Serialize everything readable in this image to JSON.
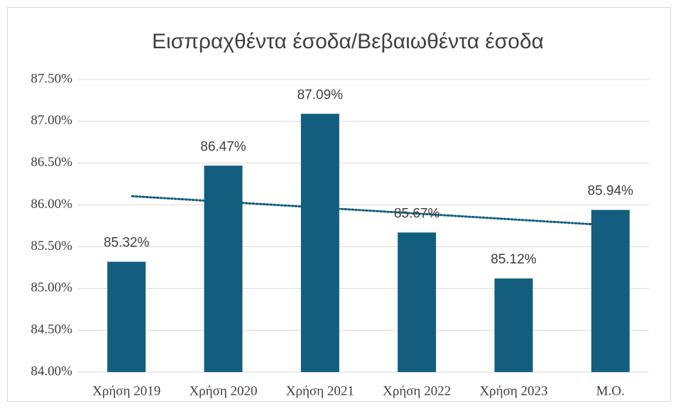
{
  "chart_data": {
    "type": "bar",
    "title": "Εισπραχθέντα έσοδα/Βεβαιωθέντα έσοδα",
    "categories": [
      "Χρήση 2019",
      "Χρήση 2020",
      "Χρήση 2021",
      "Χρήση 2022",
      "Χρήση 2023",
      "Μ.Ο."
    ],
    "values": [
      85.32,
      86.47,
      87.09,
      85.67,
      85.12,
      85.94
    ],
    "value_labels": [
      "85.32%",
      "86.47%",
      "87.09%",
      "85.67%",
      "85.12%",
      "85.94%"
    ],
    "color": "#135e7e",
    "ylim": [
      84,
      87.5
    ],
    "yticks": [
      {
        "value": 84,
        "label": "84.00%"
      },
      {
        "value": 84.5,
        "label": "84.50%"
      },
      {
        "value": 85,
        "label": "85.00%"
      },
      {
        "value": 85.5,
        "label": "85.50%"
      },
      {
        "value": 86,
        "label": "86.00%"
      },
      {
        "value": 86.5,
        "label": "86.50%"
      },
      {
        "value": 87,
        "label": "87.00%"
      },
      {
        "value": 87.5,
        "label": "87.50%"
      }
    ],
    "grid": true,
    "trendline": {
      "type": "linear",
      "color": "#135e7e"
    }
  }
}
